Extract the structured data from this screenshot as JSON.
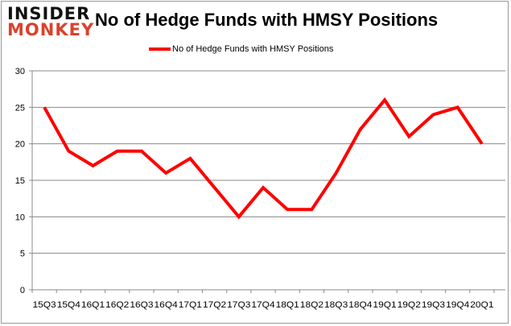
{
  "logo": {
    "line1": "INSIDER",
    "line2": "MONKEY"
  },
  "chart_data": {
    "type": "line",
    "title": "No of Hedge Funds with HMSY Positions",
    "xlabel": "",
    "ylabel": "",
    "categories": [
      "15Q3",
      "15Q4",
      "16Q1",
      "16Q2",
      "16Q3",
      "16Q4",
      "17Q1",
      "17Q2",
      "17Q3",
      "17Q4",
      "18Q1",
      "18Q2",
      "18Q3",
      "18Q4",
      "19Q1",
      "19Q2",
      "19Q3",
      "19Q4",
      "20Q1"
    ],
    "series": [
      {
        "name": "No of Hedge Funds with HMSY Positions",
        "color": "#ff0000",
        "values": [
          25,
          19,
          17,
          19,
          19,
          16,
          18,
          14,
          10,
          14,
          11,
          11,
          16,
          22,
          26,
          21,
          24,
          25,
          20
        ]
      }
    ],
    "ylim": [
      0,
      30
    ],
    "yticks": [
      0,
      5,
      10,
      15,
      20,
      25,
      30
    ],
    "grid": true,
    "legend": "top-center"
  }
}
